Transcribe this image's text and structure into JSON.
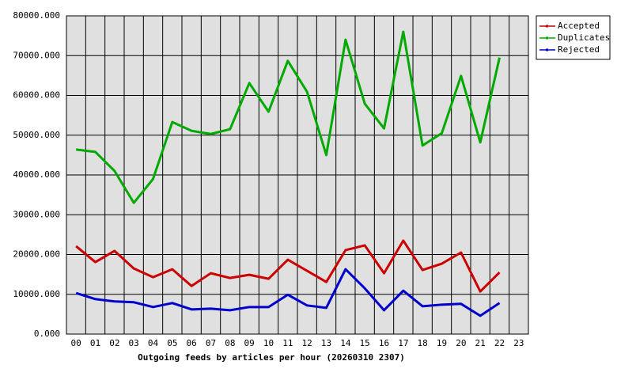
{
  "chart_data": {
    "type": "line",
    "xlabel": "Outgoing feeds by articles per hour (20260310 2307)",
    "categories": [
      "00",
      "01",
      "02",
      "03",
      "04",
      "05",
      "06",
      "07",
      "08",
      "09",
      "10",
      "11",
      "12",
      "13",
      "14",
      "15",
      "16",
      "17",
      "18",
      "19",
      "20",
      "21",
      "22",
      "23"
    ],
    "series": [
      {
        "name": "Accepted",
        "color": "#cc0000",
        "values": [
          22100,
          18100,
          20900,
          16500,
          14300,
          16300,
          12100,
          15300,
          14100,
          14900,
          13900,
          18700,
          15900,
          13100,
          21100,
          22300,
          15300,
          23500,
          16100,
          17700,
          20500,
          10700,
          15500,
          null
        ]
      },
      {
        "name": "Duplicates",
        "color": "#00aa00",
        "values": [
          46400,
          45800,
          41000,
          33000,
          39000,
          53300,
          51100,
          50300,
          51500,
          63100,
          55900,
          68700,
          60900,
          45000,
          74000,
          57900,
          51700,
          76000,
          47400,
          50500,
          64900,
          48200,
          69500,
          null
        ]
      },
      {
        "name": "Rejected",
        "color": "#0000cc",
        "values": [
          10300,
          8800,
          8200,
          8000,
          6800,
          7800,
          6200,
          6400,
          6000,
          6800,
          6800,
          9900,
          7200,
          6600,
          16300,
          11500,
          6000,
          10900,
          7000,
          7400,
          7600,
          4600,
          7800,
          null
        ]
      }
    ],
    "ylim": [
      0,
      80000
    ],
    "yticks": [
      {
        "value": 0,
        "label": "0.000"
      },
      {
        "value": 10000,
        "label": "10000.000"
      },
      {
        "value": 20000,
        "label": "20000.000"
      },
      {
        "value": 30000,
        "label": "30000.000"
      },
      {
        "value": 40000,
        "label": "40000.000"
      },
      {
        "value": 50000,
        "label": "50000.000"
      },
      {
        "value": 60000,
        "label": "60000.000"
      },
      {
        "value": 70000,
        "label": "70000.000"
      },
      {
        "value": 80000,
        "label": "80000.000"
      }
    ],
    "grid": true,
    "legend": "right"
  }
}
